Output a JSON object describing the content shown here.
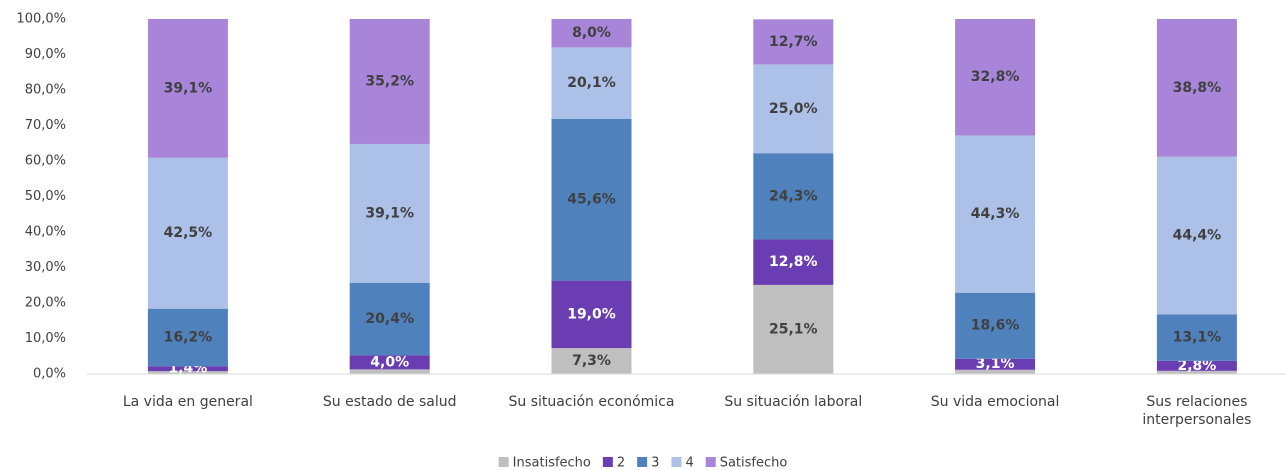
{
  "chart_data": {
    "type": "stacked_bar",
    "categories": [
      "La vida en general",
      "Su estado de salud",
      "Su situación económica",
      "Su situación laboral",
      "Su vida emocional",
      "Sus relaciones interpersonales"
    ],
    "series": [
      {
        "name": "Insatisfecho",
        "color": "#bfbfbf",
        "values": [
          0.8,
          1.3,
          7.3,
          25.1,
          1.2,
          0.9
        ],
        "value_labels": [
          null,
          null,
          "7,3%",
          "25,1%",
          null,
          null
        ]
      },
      {
        "name": "2",
        "color": "#6a3db3",
        "values": [
          1.4,
          4.0,
          19.0,
          12.8,
          3.1,
          2.8
        ],
        "value_labels": [
          "1,4%",
          "4,0%",
          "19,0%",
          "12,8%",
          "3,1%",
          "2,8%"
        ]
      },
      {
        "name": "3",
        "color": "#4f81bd",
        "values": [
          16.2,
          20.4,
          45.6,
          24.3,
          18.6,
          13.1
        ],
        "value_labels": [
          "16,2%",
          "20,4%",
          "45,6%",
          "24,3%",
          "18,6%",
          "13,1%"
        ]
      },
      {
        "name": "4",
        "color": "#adc0e8",
        "values": [
          42.5,
          39.1,
          20.1,
          25.0,
          44.3,
          44.4
        ],
        "value_labels": [
          "42,5%",
          "39,1%",
          "20,1%",
          "25,0%",
          "44,3%",
          "44,4%"
        ]
      },
      {
        "name": "Satisfecho",
        "color": "#a985da",
        "values": [
          39.1,
          35.2,
          8.0,
          12.7,
          32.8,
          38.8
        ],
        "value_labels": [
          "39,1%",
          "35,2%",
          "8,0%",
          "12,7%",
          "32,8%",
          "38,8%"
        ]
      }
    ],
    "ylim": [
      0,
      100
    ],
    "yticks": [
      {
        "value": 0,
        "label": "0,0%"
      },
      {
        "value": 10,
        "label": "10,0%"
      },
      {
        "value": 20,
        "label": "20,0%"
      },
      {
        "value": 30,
        "label": "30,0%"
      },
      {
        "value": 40,
        "label": "40,0%"
      },
      {
        "value": 50,
        "label": "50,0%"
      },
      {
        "value": 60,
        "label": "60,0%"
      },
      {
        "value": 70,
        "label": "70,0%"
      },
      {
        "value": 80,
        "label": "80,0%"
      },
      {
        "value": 90,
        "label": "90,0%"
      },
      {
        "value": 100,
        "label": "100,0%"
      }
    ],
    "legend": "bottom"
  }
}
